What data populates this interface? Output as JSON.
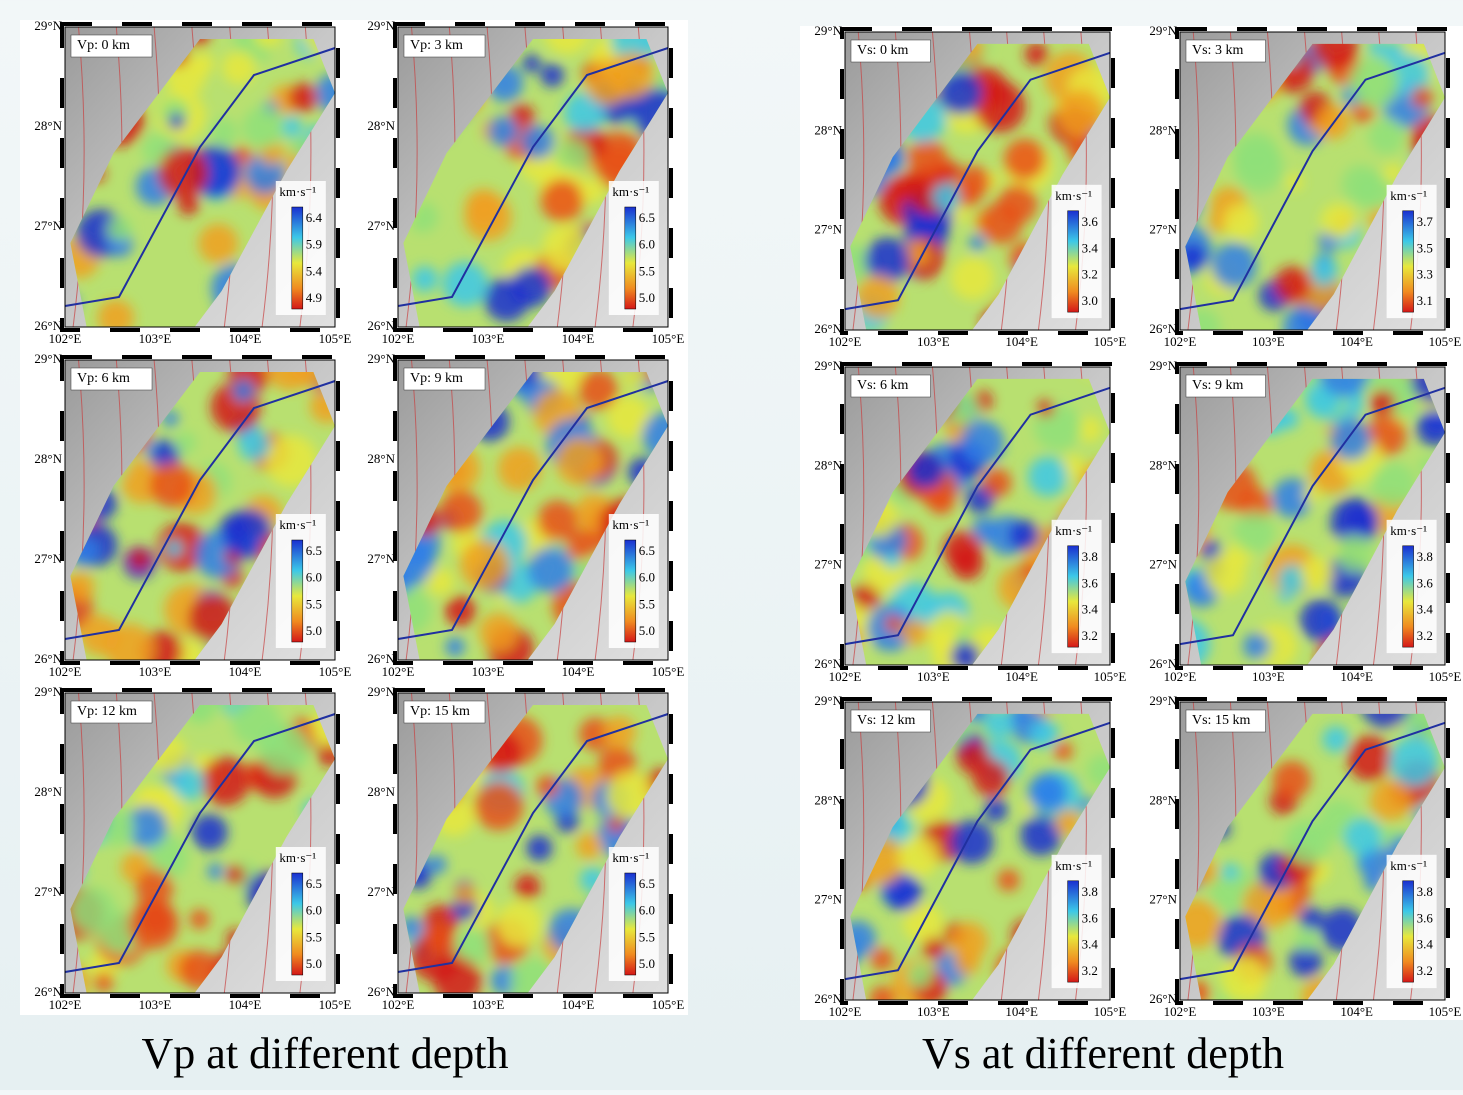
{
  "lat_ticks": [
    "29°N",
    "28°N",
    "27°N",
    "26°N"
  ],
  "lon_ticks": [
    "102°E",
    "103°E",
    "104°E",
    "105°E"
  ],
  "groups": [
    {
      "caption": "Vp at different depth",
      "panels": [
        {
          "label": "Vp: 0 km",
          "unit": "km·s⁻¹",
          "ticks": [
            "6.4",
            "5.9",
            "5.4",
            "4.9"
          ]
        },
        {
          "label": "Vp: 3 km",
          "unit": "km·s⁻¹",
          "ticks": [
            "6.5",
            "6.0",
            "5.5",
            "5.0"
          ]
        },
        {
          "label": "Vp: 6 km",
          "unit": "km·s⁻¹",
          "ticks": [
            "6.5",
            "6.0",
            "5.5",
            "5.0"
          ]
        },
        {
          "label": "Vp: 9 km",
          "unit": "km·s⁻¹",
          "ticks": [
            "6.5",
            "6.0",
            "5.5",
            "5.0"
          ]
        },
        {
          "label": "Vp: 12 km",
          "unit": "km·s⁻¹",
          "ticks": [
            "6.5",
            "6.0",
            "5.5",
            "5.0"
          ]
        },
        {
          "label": "Vp: 15 km",
          "unit": "km·s⁻¹",
          "ticks": [
            "6.5",
            "6.0",
            "5.5",
            "5.0"
          ]
        }
      ]
    },
    {
      "caption": "Vs at different depth",
      "panels": [
        {
          "label": "Vs: 0 km",
          "unit": "km·s⁻¹",
          "ticks": [
            "3.6",
            "3.4",
            "3.2",
            "3.0"
          ]
        },
        {
          "label": "Vs: 3 km",
          "unit": "km·s⁻¹",
          "ticks": [
            "3.7",
            "3.5",
            "3.3",
            "3.1"
          ]
        },
        {
          "label": "Vs: 6 km",
          "unit": "km·s⁻¹",
          "ticks": [
            "3.8",
            "3.6",
            "3.4",
            "3.2"
          ]
        },
        {
          "label": "Vs: 9 km",
          "unit": "km·s⁻¹",
          "ticks": [
            "3.8",
            "3.6",
            "3.4",
            "3.2"
          ]
        },
        {
          "label": "Vs: 12 km",
          "unit": "km·s⁻¹",
          "ticks": [
            "3.8",
            "3.6",
            "3.4",
            "3.2"
          ]
        },
        {
          "label": "Vs: 15 km",
          "unit": "km·s⁻¹",
          "ticks": [
            "3.8",
            "3.6",
            "3.4",
            "3.2"
          ]
        }
      ]
    }
  ]
}
